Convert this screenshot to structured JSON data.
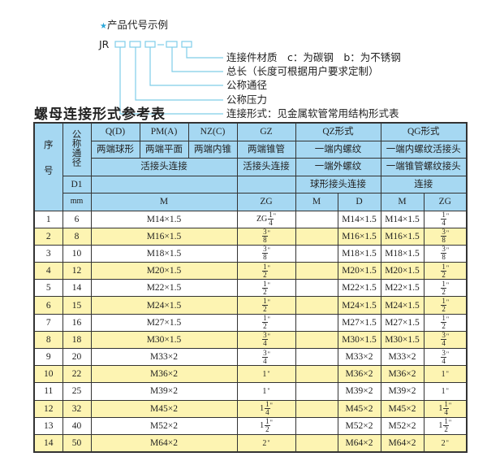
{
  "diagram": {
    "heading": "产品代号示例",
    "star_color": "#2aa7d9",
    "code_prefix": "JR",
    "dash": "–",
    "labels": [
      "连接件材质　c：为碳钢　b：为不锈钢",
      "总长（长度可根据用户要求定制）",
      "公称通径",
      "公称压力",
      "连接形式：见金属软管常用结构形式表"
    ],
    "line_color": "#7fcde8"
  },
  "title": "螺母连接形式参考表",
  "table": {
    "header_bg": "#a6d8f2",
    "alt_row_bg": "#fdf4b2",
    "h_seq": "序号",
    "h_dn": "公称通径",
    "h_qd": "Q(D)",
    "h_pm": "PM(A)",
    "h_nz": "NZ(C)",
    "h_gz": "GZ",
    "h_qz": "QZ形式",
    "h_qg": "QG形式",
    "r2": [
      "两端球形",
      "两端平面",
      "两端内锥",
      "两端锥管",
      "一端内螺纹",
      "一端内螺纹活接头"
    ],
    "r3": [
      "活接头连接",
      "活接头连接",
      "一端外螺纹",
      "一端锥管螺纹接头"
    ],
    "r4_d1": "D1",
    "r4_qz": "球形接头连接",
    "r4_qg": "连接",
    "r5": [
      "mm",
      "M",
      "ZG",
      "M",
      "D",
      "M",
      "ZG"
    ],
    "rows": [
      {
        "no": "1",
        "dn": "6",
        "m": "M14×1.5",
        "zg": {
          "whole": "ZG",
          "num": "1",
          "den": "4"
        },
        "qz_m": "",
        "qz_d": "M14×1.5",
        "qg_m": "M14×1.5",
        "qg_zg": {
          "whole": "",
          "num": "1",
          "den": "4"
        }
      },
      {
        "no": "2",
        "dn": "8",
        "m": "M16×1.5",
        "zg": {
          "whole": "",
          "num": "3",
          "den": "8"
        },
        "qz_m": "",
        "qz_d": "M16×1.5",
        "qg_m": "M16×1.5",
        "qg_zg": {
          "whole": "",
          "num": "3",
          "den": "8"
        }
      },
      {
        "no": "3",
        "dn": "10",
        "m": "M18×1.5",
        "zg": {
          "whole": "",
          "num": "3",
          "den": "8"
        },
        "qz_m": "",
        "qz_d": "M18×1.5",
        "qg_m": "M18×1.5",
        "qg_zg": {
          "whole": "",
          "num": "3",
          "den": "8"
        }
      },
      {
        "no": "4",
        "dn": "12",
        "m": "M20×1.5",
        "zg": {
          "whole": "",
          "num": "1",
          "den": "2"
        },
        "qz_m": "",
        "qz_d": "M20×1.5",
        "qg_m": "M20×1.5",
        "qg_zg": {
          "whole": "",
          "num": "1",
          "den": "2"
        }
      },
      {
        "no": "5",
        "dn": "14",
        "m": "M22×1.5",
        "zg": {
          "whole": "",
          "num": "1",
          "den": "2"
        },
        "qz_m": "",
        "qz_d": "M22×1.5",
        "qg_m": "M22×1.5",
        "qg_zg": {
          "whole": "",
          "num": "1",
          "den": "2"
        }
      },
      {
        "no": "6",
        "dn": "15",
        "m": "M24×1.5",
        "zg": {
          "whole": "",
          "num": "1",
          "den": "2"
        },
        "qz_m": "",
        "qz_d": "M24×1.5",
        "qg_m": "M24×1.5",
        "qg_zg": {
          "whole": "",
          "num": "1",
          "den": "2"
        }
      },
      {
        "no": "7",
        "dn": "16",
        "m": "M27×1.5",
        "zg": {
          "whole": "",
          "num": "1",
          "den": "2"
        },
        "qz_m": "",
        "qz_d": "M27×1.5",
        "qg_m": "M27×1.5",
        "qg_zg": {
          "whole": "",
          "num": "1",
          "den": "2"
        }
      },
      {
        "no": "8",
        "dn": "18",
        "m": "M30×1.5",
        "zg": {
          "whole": "",
          "num": "3",
          "den": "4"
        },
        "qz_m": "",
        "qz_d": "M30×1.5",
        "qg_m": "M30×1.5",
        "qg_zg": {
          "whole": "",
          "num": "3",
          "den": "4"
        }
      },
      {
        "no": "9",
        "dn": "20",
        "m": "M33×2",
        "zg": {
          "whole": "",
          "num": "3",
          "den": "4"
        },
        "qz_m": "",
        "qz_d": "M33×2",
        "qg_m": "M33×2",
        "qg_zg": {
          "whole": "",
          "num": "3",
          "den": "4"
        }
      },
      {
        "no": "10",
        "dn": "22",
        "m": "M36×2",
        "zg": {
          "whole": "1",
          "num": "",
          "den": ""
        },
        "qz_m": "",
        "qz_d": "M36×2",
        "qg_m": "M36×2",
        "qg_zg": {
          "whole": "1",
          "num": "",
          "den": ""
        }
      },
      {
        "no": "11",
        "dn": "25",
        "m": "M39×2",
        "zg": {
          "whole": "1",
          "num": "",
          "den": ""
        },
        "qz_m": "",
        "qz_d": "M39×2",
        "qg_m": "M39×2",
        "qg_zg": {
          "whole": "1",
          "num": "",
          "den": ""
        }
      },
      {
        "no": "12",
        "dn": "32",
        "m": "M45×2",
        "zg": {
          "whole": "1",
          "num": "1",
          "den": "4"
        },
        "qz_m": "",
        "qz_d": "M45×2",
        "qg_m": "M45×2",
        "qg_zg": {
          "whole": "1",
          "num": "1",
          "den": "4"
        }
      },
      {
        "no": "13",
        "dn": "40",
        "m": "M52×2",
        "zg": {
          "whole": "1",
          "num": "1",
          "den": "2"
        },
        "qz_m": "",
        "qz_d": "M52×2",
        "qg_m": "M52×2",
        "qg_zg": {
          "whole": "1",
          "num": "1",
          "den": "2"
        }
      },
      {
        "no": "14",
        "dn": "50",
        "m": "M64×2",
        "zg": {
          "whole": "2",
          "num": "",
          "den": ""
        },
        "qz_m": "",
        "qz_d": "M64×2",
        "qg_m": "M64×2",
        "qg_zg": {
          "whole": "2",
          "num": "",
          "den": ""
        }
      }
    ]
  }
}
